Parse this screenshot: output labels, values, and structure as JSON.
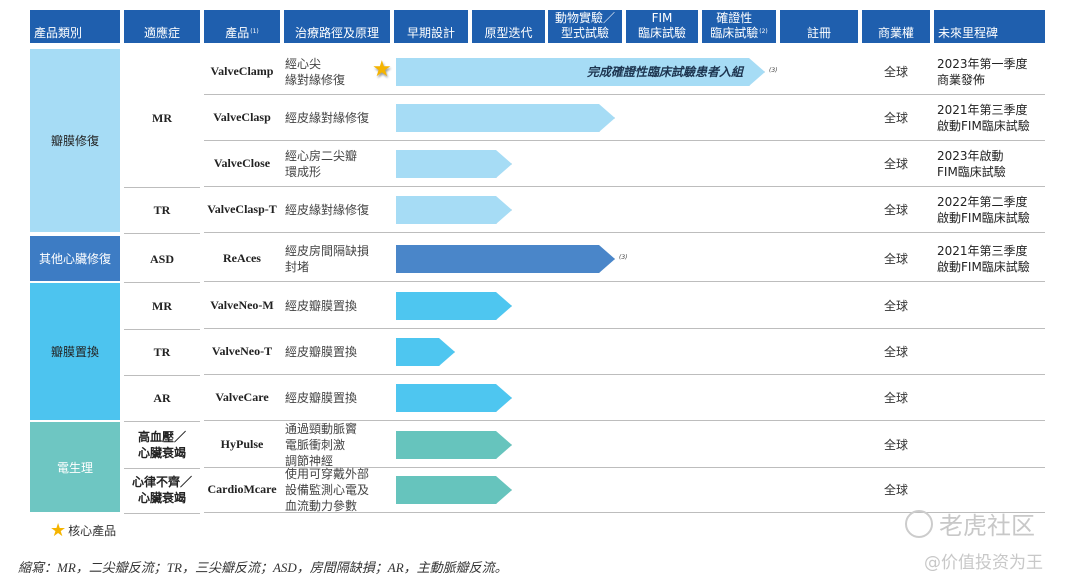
{
  "headers": [
    "產品類別",
    "適應症",
    "產品",
    "治療路徑及原理",
    "早期設計",
    "原型迭代",
    "動物實驗／\n型式試驗",
    "FIM\n臨床試驗",
    "確證性\n臨床試驗",
    "註冊",
    "商業權",
    "未來里程碑"
  ],
  "header_notes": {
    "product": "(1)",
    "confirmatory": "(2)"
  },
  "colors": {
    "header": "#1f5fae",
    "valve_repair": "#a6dcf5",
    "other_cardiac": "#3d7cc4",
    "valve_replacement": "#4dc4ef",
    "electrophysiology": "#6ec6c2"
  },
  "categories": [
    {
      "label": "瓣膜修復",
      "color": "#a6dcf5",
      "text_color": "#222222"
    },
    {
      "label": "其他心臟修復",
      "color": "#3d7cc4",
      "text_color": "#ffffff"
    },
    {
      "label": "瓣膜置換",
      "color": "#4dc4ef",
      "text_color": "#222222"
    },
    {
      "label": "電生理",
      "color": "#6ec6c2",
      "text_color": "#ffffff"
    }
  ],
  "indications": [
    "MR",
    "TR",
    "ASD",
    "MR",
    "TR",
    "AR",
    "高血壓／\n心臟衰竭",
    "心律不齊／\n心臟衰竭"
  ],
  "rows": [
    {
      "product": "ValveClamp",
      "approach": "經心尖\n緣對緣修復",
      "core": true,
      "stage": "確證性臨床試驗",
      "arrow_text": "完成確證性臨床試驗患者入組",
      "note": "(3)",
      "arrow_color": "#a6dcf5",
      "rights": "全球",
      "milestone": "2023年第一季度\n商業發佈"
    },
    {
      "product": "ValveClasp",
      "approach": "經皮緣對緣修復",
      "stage": "動物實驗／型式試驗",
      "arrow_color": "#a6dcf5",
      "rights": "全球",
      "milestone": "2021年第三季度\n啟動FIM臨床試驗"
    },
    {
      "product": "ValveClose",
      "approach": "經心房二尖瓣\n環成形",
      "stage": "原型迭代",
      "arrow_color": "#a6dcf5",
      "rights": "全球",
      "milestone": "2023年啟動\nFIM臨床試驗"
    },
    {
      "product": "ValveClasp-T",
      "approach": "經皮緣對緣修復",
      "stage": "原型迭代",
      "arrow_color": "#a6dcf5",
      "rights": "全球",
      "milestone": "2022年第二季度\n啟動FIM臨床試驗"
    },
    {
      "product": "ReAces",
      "approach": "經皮房間隔缺損\n封堵",
      "stage": "動物實驗／型式試驗",
      "note": "(3)",
      "arrow_color": "#4a86c9",
      "rights": "全球",
      "milestone": "2021年第三季度\n啟動FIM臨床試驗"
    },
    {
      "product": "ValveNeo-M",
      "approach": "經皮瓣膜置換",
      "stage": "原型迭代",
      "arrow_color": "#4ec6f0",
      "rights": "全球",
      "milestone": ""
    },
    {
      "product": "ValveNeo-T",
      "approach": "經皮瓣膜置換",
      "stage": "早期設計",
      "arrow_color": "#4ec6f0",
      "rights": "全球",
      "milestone": ""
    },
    {
      "product": "ValveCare",
      "approach": "經皮瓣膜置換",
      "stage": "原型迭代",
      "arrow_color": "#4ec6f0",
      "rights": "全球",
      "milestone": ""
    },
    {
      "product": "HyPulse",
      "approach": "通過頸動脈竇\n電脈衝刺激\n調節神經",
      "stage": "原型迭代",
      "arrow_color": "#66c4bd",
      "rights": "全球",
      "milestone": ""
    },
    {
      "product": "CardioMcare",
      "approach": "使用可穿戴外部\n設備監測心電及\n血流動力參數",
      "stage": "原型迭代",
      "arrow_color": "#66c4bd",
      "rights": "全球",
      "milestone": ""
    }
  ],
  "legend": {
    "icon": "star-icon",
    "label": "核心產品"
  },
  "footnote": "縮寫：MR，二尖瓣反流；TR，三尖瓣反流；ASD，房間隔缺損；AR，主動脈瓣反流。",
  "watermark": {
    "logo": "老虎社区",
    "handle": "@价值投资为王"
  }
}
